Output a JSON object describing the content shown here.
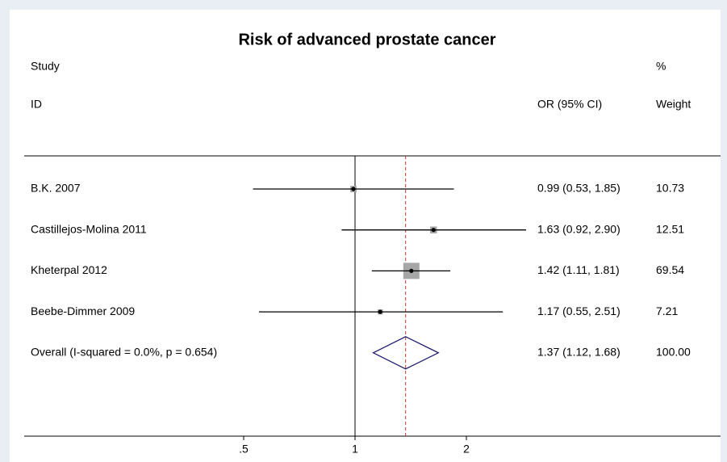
{
  "chart_data": {
    "type": "forest",
    "title": "Risk of advanced prostate cancer",
    "headers": {
      "study_top": "Study",
      "study_bottom": "ID",
      "ci": "OR (95% CI)",
      "weight_top": "%",
      "weight_bottom": "Weight"
    },
    "studies": [
      "B.K. 2007",
      "Castillejos-Molina 2011",
      "Kheterpal 2012",
      "Beebe-Dimmer 2009"
    ],
    "or": [
      0.99,
      1.63,
      1.42,
      1.17
    ],
    "ci_lower": [
      0.53,
      0.92,
      1.11,
      0.55
    ],
    "ci_upper": [
      1.85,
      2.9,
      1.81,
      2.51
    ],
    "ci_labels": [
      "0.99 (0.53, 1.85)",
      "1.63 (0.92, 2.90)",
      "1.42 (1.11, 1.81)",
      "1.17 (0.55, 2.51)"
    ],
    "weights": [
      10.73,
      12.51,
      69.54,
      7.21
    ],
    "overall": {
      "label": "Overall  (I-squared = 0.0%, p = 0.654)",
      "or": 1.37,
      "ci_lower": 1.12,
      "ci_upper": 1.68,
      "ci_label": "1.37 (1.12, 1.68)",
      "weight": 100,
      "weight_label": "100.00"
    },
    "log_scale": true,
    "xlim": [
      0.5,
      2
    ],
    "xticks": [
      {
        "value": 0.5,
        "label": ".5"
      },
      1,
      2
    ],
    "null_value": 1,
    "colors": {
      "square": "#a6a6a6",
      "diamond": "#1a1a6e",
      "overall_line": "#c0392b"
    }
  }
}
